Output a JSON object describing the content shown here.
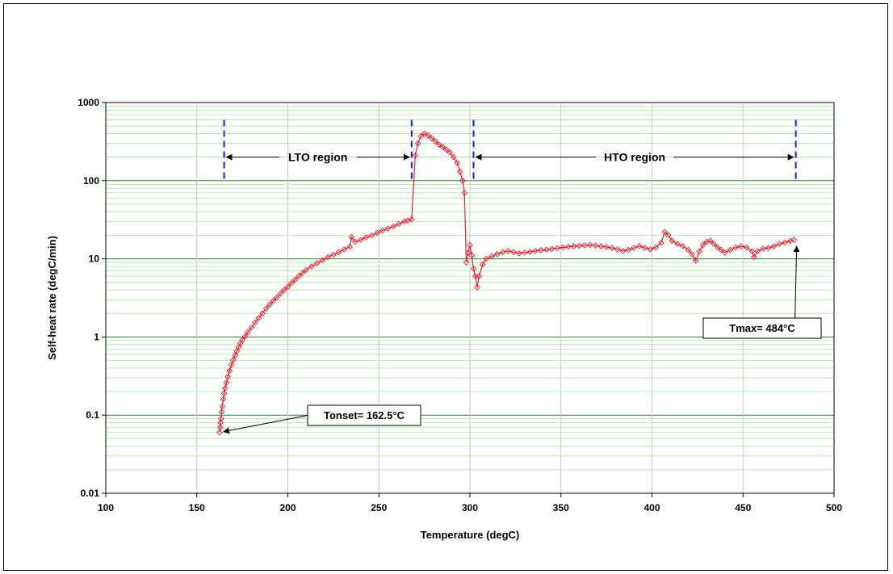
{
  "chart_data": {
    "type": "scatter",
    "xlabel": "Temperature (degC)",
    "ylabel": "Self-heat rate (degC/min)",
    "xlim": [
      100,
      500
    ],
    "ylim": [
      0.01,
      1000
    ],
    "y_scale": "log",
    "x_ticks": [
      "100",
      "150",
      "200",
      "250",
      "300",
      "350",
      "400",
      "450",
      "500"
    ],
    "y_ticks": [
      "0.01",
      "0.1",
      "1",
      "10",
      "100",
      "1000"
    ],
    "grid": true,
    "series": [
      {
        "color": "#e8202a",
        "marker": "diamond",
        "points": [
          [
            162.5,
            0.06
          ],
          [
            162.8,
            0.07
          ],
          [
            163.0,
            0.08
          ],
          [
            163.3,
            0.09
          ],
          [
            163.6,
            0.11
          ],
          [
            164.0,
            0.13
          ],
          [
            164.5,
            0.16
          ],
          [
            165.0,
            0.19
          ],
          [
            165.5,
            0.22
          ],
          [
            166.2,
            0.26
          ],
          [
            167.0,
            0.31
          ],
          [
            168.0,
            0.37
          ],
          [
            169.0,
            0.44
          ],
          [
            170.0,
            0.51
          ],
          [
            171.0,
            0.58
          ],
          [
            172.0,
            0.66
          ],
          [
            173.0,
            0.74
          ],
          [
            174.0,
            0.83
          ],
          [
            175.0,
            0.92
          ],
          [
            176.5,
            1.02
          ],
          [
            178.0,
            1.15
          ],
          [
            180.0,
            1.32
          ],
          [
            182.0,
            1.52
          ],
          [
            184.0,
            1.75
          ],
          [
            186.0,
            2.0
          ],
          [
            188.0,
            2.3
          ],
          [
            190.0,
            2.6
          ],
          [
            192.0,
            2.9
          ],
          [
            194.0,
            3.2
          ],
          [
            196.0,
            3.6
          ],
          [
            198.0,
            4.0
          ],
          [
            200.0,
            4.4
          ],
          [
            202.0,
            4.9
          ],
          [
            204.0,
            5.4
          ],
          [
            206.0,
            6.0
          ],
          [
            208.0,
            6.6
          ],
          [
            210.0,
            7.2
          ],
          [
            213.0,
            8.0
          ],
          [
            216.0,
            8.8
          ],
          [
            219.0,
            9.6
          ],
          [
            222.0,
            10.5
          ],
          [
            225.0,
            11.3
          ],
          [
            228.0,
            12.2
          ],
          [
            231.0,
            13.2
          ],
          [
            234.0,
            14.3
          ],
          [
            235.0,
            19.0
          ],
          [
            237.0,
            16.5
          ],
          [
            240.0,
            17.5
          ],
          [
            243.0,
            18.8
          ],
          [
            246.0,
            20.0
          ],
          [
            249.0,
            21.5
          ],
          [
            252.0,
            23.0
          ],
          [
            255.0,
            24.5
          ],
          [
            258.0,
            26.0
          ],
          [
            261.0,
            28.0
          ],
          [
            264.0,
            30.0
          ],
          [
            266.0,
            31.0
          ],
          [
            268.0,
            32.0
          ],
          [
            270.0,
            210.0
          ],
          [
            271.5,
            300.0
          ],
          [
            273.0,
            370.0
          ],
          [
            275.0,
            400.0
          ],
          [
            277.0,
            380.0
          ],
          [
            279.0,
            350.0
          ],
          [
            281.0,
            320.0
          ],
          [
            283.0,
            290.0
          ],
          [
            285.0,
            270.0
          ],
          [
            287.0,
            250.0
          ],
          [
            289.0,
            230.0
          ],
          [
            291.0,
            200.0
          ],
          [
            293.0,
            170.0
          ],
          [
            294.5,
            130.0
          ],
          [
            296.0,
            100.0
          ],
          [
            297.0,
            70.0
          ],
          [
            298.0,
            9.0
          ],
          [
            299.0,
            12.0
          ],
          [
            300.0,
            15.0
          ],
          [
            301.0,
            11.0
          ],
          [
            302.0,
            7.5
          ],
          [
            303.0,
            6.0
          ],
          [
            304.0,
            4.3
          ],
          [
            305.0,
            6.0
          ],
          [
            307.0,
            8.5
          ],
          [
            309.0,
            10.0
          ],
          [
            312.0,
            10.8
          ],
          [
            315.0,
            11.5
          ],
          [
            318.0,
            12.2
          ],
          [
            321.0,
            12.6
          ],
          [
            324.0,
            12.2
          ],
          [
            327.0,
            11.8
          ],
          [
            330.0,
            12.0
          ],
          [
            333.0,
            12.3
          ],
          [
            336.0,
            12.6
          ],
          [
            339.0,
            12.9
          ],
          [
            342.0,
            13.1
          ],
          [
            345.0,
            13.4
          ],
          [
            348.0,
            13.7
          ],
          [
            351.0,
            14.0
          ],
          [
            354.0,
            14.3
          ],
          [
            357.0,
            14.5
          ],
          [
            360.0,
            14.7
          ],
          [
            363.0,
            14.9
          ],
          [
            366.0,
            15.0
          ],
          [
            369.0,
            14.8
          ],
          [
            372.0,
            14.5
          ],
          [
            375.0,
            14.2
          ],
          [
            378.0,
            13.8
          ],
          [
            381.0,
            13.2
          ],
          [
            384.0,
            12.6
          ],
          [
            387.0,
            13.0
          ],
          [
            390.0,
            13.8
          ],
          [
            393.0,
            14.6
          ],
          [
            396.0,
            13.8
          ],
          [
            399.0,
            13.2
          ],
          [
            402.0,
            14.0
          ],
          [
            405.0,
            16.0
          ],
          [
            407.0,
            22.0
          ],
          [
            409.0,
            20.0
          ],
          [
            411.0,
            17.0
          ],
          [
            414.0,
            15.5
          ],
          [
            417.0,
            14.5
          ],
          [
            420.0,
            13.0
          ],
          [
            422.0,
            11.5
          ],
          [
            424.0,
            9.5
          ],
          [
            426.0,
            12.5
          ],
          [
            428.0,
            15.0
          ],
          [
            430.0,
            16.5
          ],
          [
            432.0,
            17.0
          ],
          [
            434.0,
            15.5
          ],
          [
            436.0,
            14.0
          ],
          [
            438.0,
            13.0
          ],
          [
            440.0,
            12.0
          ],
          [
            443.0,
            13.0
          ],
          [
            446.0,
            14.0
          ],
          [
            449.0,
            14.5
          ],
          [
            452.0,
            14.0
          ],
          [
            455.0,
            12.5
          ],
          [
            456.0,
            10.5
          ],
          [
            458.0,
            12.5
          ],
          [
            461.0,
            13.5
          ],
          [
            464.0,
            13.8
          ],
          [
            467.0,
            14.5
          ],
          [
            470.0,
            15.5
          ],
          [
            473.0,
            16.2
          ],
          [
            476.0,
            17.0
          ],
          [
            478.0,
            17.5
          ]
        ]
      }
    ],
    "region_markers": [
      {
        "x": 165,
        "label": ""
      },
      {
        "x": 268,
        "label": ""
      },
      {
        "x": 302,
        "label": ""
      },
      {
        "x": 479,
        "label": ""
      }
    ],
    "regions": [
      {
        "label": "LTO region",
        "x_start": 165,
        "x_end": 268,
        "y": 200
      },
      {
        "label": "HTO region",
        "x_start": 302,
        "x_end": 479,
        "y": 200
      }
    ],
    "annotations": [
      {
        "text": "Tonset= 162.5°C",
        "x": 162.5,
        "y": 0.06
      },
      {
        "text": "Tmax= 484°C",
        "x": 479,
        "y": 17.5
      }
    ]
  }
}
